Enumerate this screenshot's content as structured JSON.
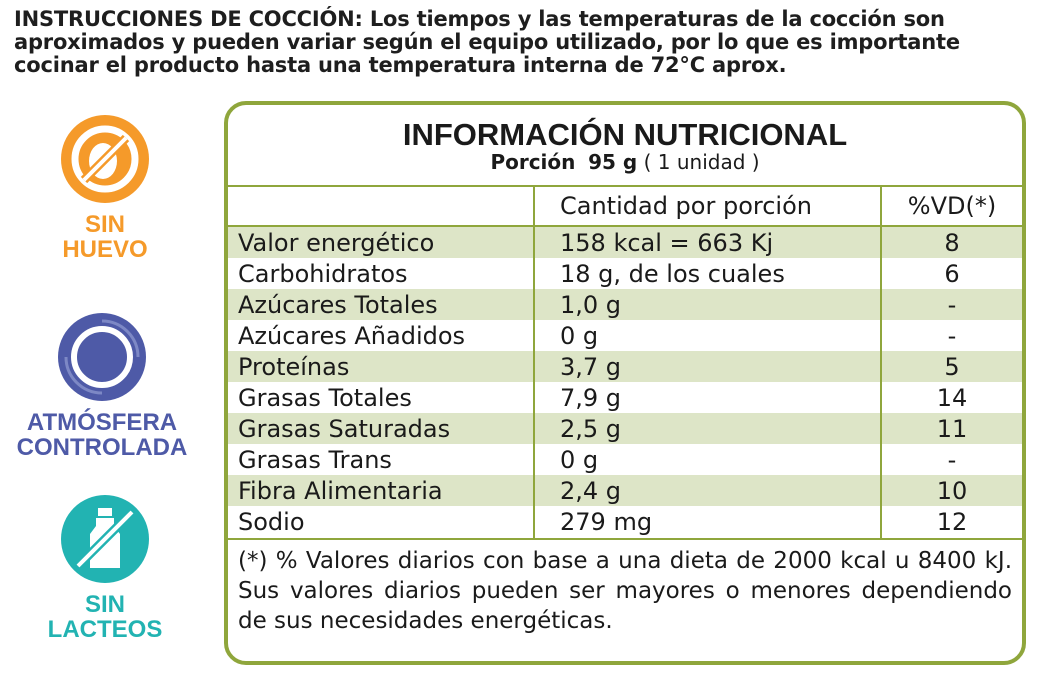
{
  "instructions": {
    "lead": "INSTRUCCIONES DE COCCIÓN:",
    "text": "Los tiempos y las temperaturas de la cocción son aproximados y pueden variar según el equipo utilizado, por lo que es importante cocinar el producto hasta una temperatura interna de 72°C aprox."
  },
  "badges": [
    {
      "icon": "no-egg-icon",
      "line1": "SIN",
      "line2": "HUEVO",
      "color": "#f59a2a"
    },
    {
      "icon": "controlled-atmosphere-icon",
      "line1": "ATMÓSFERA",
      "line2": "CONTROLADA",
      "color": "#4e5aa7"
    },
    {
      "icon": "no-dairy-icon",
      "line1": "SIN",
      "line2": "LACTEOS",
      "color": "#22b3b2"
    }
  ],
  "nutrition": {
    "title": "INFORMACIÓN NUTRICIONAL",
    "portion_label": "Porción",
    "portion_value": "95 g",
    "portion_note": "( 1 unidad )",
    "col_amount": "Cantidad por porción",
    "col_dv": "%VD(*)",
    "rows": [
      {
        "name": "Valor energético",
        "amount": "158 kcal = 663 Kj",
        "dv": "8"
      },
      {
        "name": "Carbohidratos",
        "amount": "18 g, de los cuales",
        "dv": "6"
      },
      {
        "name": "Azúcares Totales",
        "amount": "1,0 g",
        "dv": "-"
      },
      {
        "name": "Azúcares Añadidos",
        "amount": "0 g",
        "dv": "-"
      },
      {
        "name": "Proteínas",
        "amount": "3,7 g",
        "dv": "5"
      },
      {
        "name": "Grasas Totales",
        "amount": "7,9 g",
        "dv": "14"
      },
      {
        "name": "Grasas Saturadas",
        "amount": "2,5 g",
        "dv": "11"
      },
      {
        "name": "Grasas Trans",
        "amount": "0 g",
        "dv": "-"
      },
      {
        "name": "Fibra Alimentaria",
        "amount": "2,4 g",
        "dv": "10"
      },
      {
        "name": "Sodio",
        "amount": "279 mg",
        "dv": "12"
      }
    ],
    "footnote": "(*) % Valores diarios con base a una dieta de 2000 kcal u 8400 kJ. Sus valores diarios pueden ser mayores o menores dependiendo de sus necesidades energéticas."
  },
  "colors": {
    "border": "#8fa63c",
    "shade": "#dde5c7"
  }
}
